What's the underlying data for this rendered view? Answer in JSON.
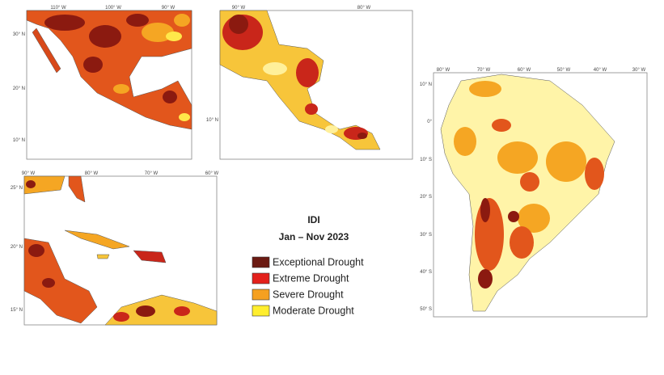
{
  "panels": [
    {
      "top_labels": [
        "110° W",
        "100° W",
        "90° W"
      ],
      "left_labels": [
        "30° N",
        "20° N",
        "10° N"
      ]
    },
    {
      "top_labels": [
        "90° W",
        "80° W"
      ],
      "left_labels": [
        "10° N"
      ]
    },
    {
      "top_labels": [
        "90° W",
        "80° W",
        "70° W",
        "60° W"
      ],
      "left_labels": [
        "25° N",
        "20° N",
        "15° N"
      ]
    },
    {
      "top_labels": [
        "80° W",
        "70° W",
        "60° W",
        "50° W",
        "40° W",
        "30° W"
      ],
      "left_labels": [
        "10° N",
        "0°",
        "10° S",
        "20° S",
        "30° S",
        "40° S",
        "50° S"
      ]
    }
  ],
  "legend": {
    "title": "IDI",
    "subtitle": "Jan – Nov 2023",
    "items": [
      {
        "label": "Exceptional Drought",
        "color": "#6b1a12"
      },
      {
        "label": "Extreme Drought",
        "color": "#e3201b"
      },
      {
        "label": "Severe Drought",
        "color": "#f5a020"
      },
      {
        "label": "Moderate Drought",
        "color": "#ffee2e"
      }
    ]
  }
}
